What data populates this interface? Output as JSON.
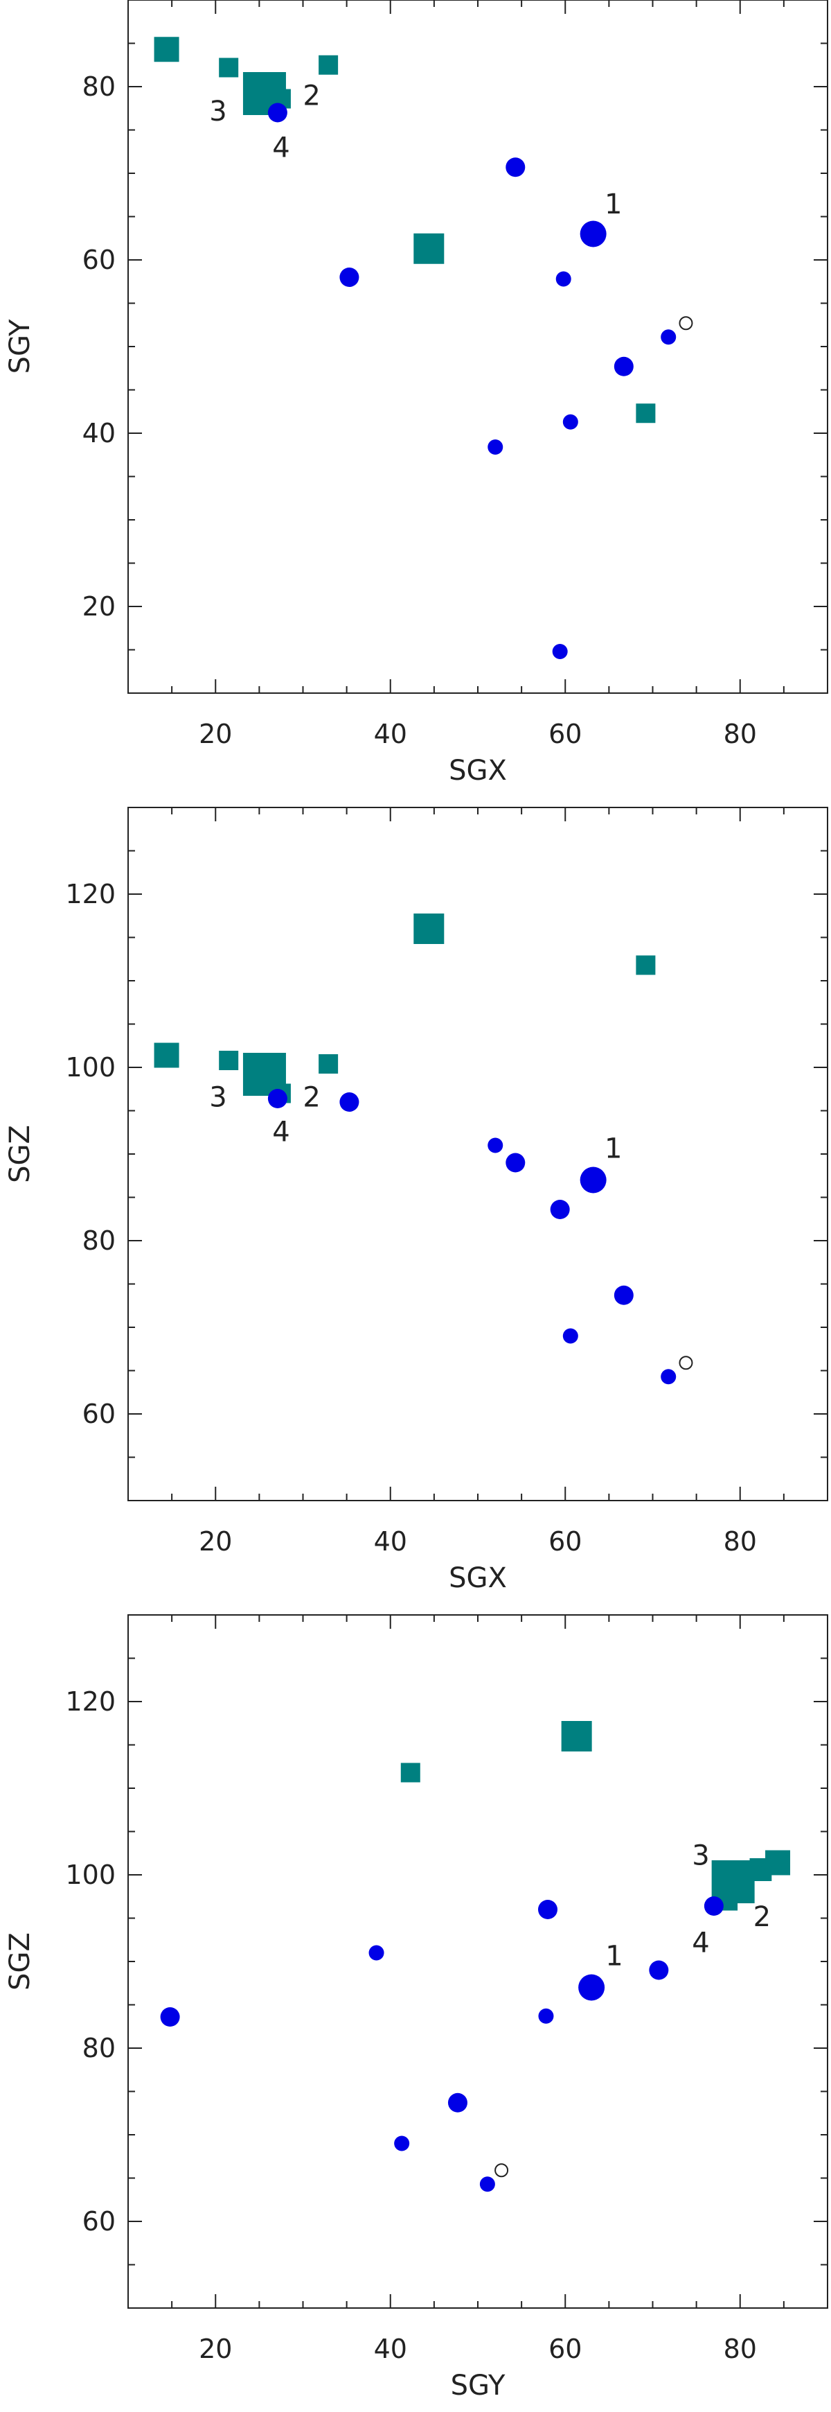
{
  "colors": {
    "circle": "#0000e6",
    "square": "#008080",
    "axis": "#222222",
    "open_marker": "#222222"
  },
  "chart_data": [
    {
      "type": "scatter",
      "xlabel": "SGX",
      "ylabel": "SGY",
      "xlim": [
        10,
        90
      ],
      "ylim": [
        10,
        90
      ],
      "xticks": [
        20,
        40,
        60,
        80
      ],
      "yticks": [
        20,
        40,
        60,
        80
      ],
      "grid": false,
      "circles": [
        {
          "x": 27.1,
          "y": 77,
          "size": "m"
        },
        {
          "x": 54.3,
          "y": 70.7,
          "size": "m"
        },
        {
          "x": 63.2,
          "y": 63,
          "size": "l"
        },
        {
          "x": 35.3,
          "y": 58,
          "size": "m"
        },
        {
          "x": 59.8,
          "y": 57.8,
          "size": "s"
        },
        {
          "x": 71.8,
          "y": 51.1,
          "size": "s"
        },
        {
          "x": 66.7,
          "y": 47.7,
          "size": "m"
        },
        {
          "x": 60.6,
          "y": 41.3,
          "size": "s"
        },
        {
          "x": 52.0,
          "y": 38.4,
          "size": "s"
        },
        {
          "x": 59.4,
          "y": 14.8,
          "size": "s"
        }
      ],
      "squares": [
        {
          "x": 14.4,
          "y": 84.3,
          "size": "m"
        },
        {
          "x": 21.5,
          "y": 82.2,
          "size": "s"
        },
        {
          "x": 32.9,
          "y": 82.5,
          "size": "s"
        },
        {
          "x": 27.5,
          "y": 78.6,
          "size": "s"
        },
        {
          "x": 25.6,
          "y": 79.2,
          "size": "xl"
        },
        {
          "x": 44.4,
          "y": 61.3,
          "size": "l"
        },
        {
          "x": 69.2,
          "y": 42.3,
          "size": "s"
        }
      ],
      "open": [
        {
          "x": 73.8,
          "y": 52.7
        }
      ],
      "labels": [
        {
          "text": "1",
          "x": 65.5,
          "y": 66.5
        },
        {
          "text": "2",
          "x": 31.0,
          "y": 79.0
        },
        {
          "text": "3",
          "x": 20.3,
          "y": 77.2
        },
        {
          "text": "4",
          "x": 27.5,
          "y": 73.0
        }
      ]
    },
    {
      "type": "scatter",
      "xlabel": "SGX",
      "ylabel": "SGZ",
      "xlim": [
        10,
        90
      ],
      "ylim": [
        50,
        130
      ],
      "xticks": [
        20,
        40,
        60,
        80
      ],
      "yticks": [
        60,
        80,
        100,
        120
      ],
      "grid": false,
      "circles": [
        {
          "x": 27.1,
          "y": 96.4,
          "size": "m"
        },
        {
          "x": 35.3,
          "y": 96.0,
          "size": "m"
        },
        {
          "x": 52.0,
          "y": 91.0,
          "size": "s"
        },
        {
          "x": 54.3,
          "y": 89.0,
          "size": "m"
        },
        {
          "x": 63.2,
          "y": 87.0,
          "size": "l"
        },
        {
          "x": 59.4,
          "y": 83.6,
          "size": "m"
        },
        {
          "x": 66.7,
          "y": 73.7,
          "size": "m"
        },
        {
          "x": 60.6,
          "y": 69.0,
          "size": "s"
        },
        {
          "x": 71.8,
          "y": 64.3,
          "size": "s"
        }
      ],
      "squares": [
        {
          "x": 44.4,
          "y": 116.0,
          "size": "l"
        },
        {
          "x": 69.2,
          "y": 111.8,
          "size": "s"
        },
        {
          "x": 14.4,
          "y": 101.4,
          "size": "m"
        },
        {
          "x": 21.5,
          "y": 100.8,
          "size": "s"
        },
        {
          "x": 32.9,
          "y": 100.4,
          "size": "s"
        },
        {
          "x": 25.6,
          "y": 99.2,
          "size": "xl"
        },
        {
          "x": 27.5,
          "y": 97.0,
          "size": "s"
        }
      ],
      "open": [
        {
          "x": 73.8,
          "y": 65.9
        }
      ],
      "labels": [
        {
          "text": "1",
          "x": 65.5,
          "y": 90.7
        },
        {
          "text": "2",
          "x": 31.0,
          "y": 96.6
        },
        {
          "text": "3",
          "x": 20.3,
          "y": 96.6
        },
        {
          "text": "4",
          "x": 27.5,
          "y": 92.6
        }
      ]
    },
    {
      "type": "scatter",
      "xlabel": "SGY",
      "ylabel": "SGZ",
      "xlim": [
        10,
        90
      ],
      "ylim": [
        50,
        130
      ],
      "xticks": [
        20,
        40,
        60,
        80
      ],
      "yticks": [
        60,
        80,
        100,
        120
      ],
      "grid": false,
      "circles": [
        {
          "x": 14.8,
          "y": 83.6,
          "size": "m"
        },
        {
          "x": 38.4,
          "y": 91.0,
          "size": "s"
        },
        {
          "x": 41.3,
          "y": 69.0,
          "size": "s"
        },
        {
          "x": 47.7,
          "y": 73.7,
          "size": "m"
        },
        {
          "x": 51.1,
          "y": 64.3,
          "size": "s"
        },
        {
          "x": 57.8,
          "y": 83.7,
          "size": "s"
        },
        {
          "x": 58.0,
          "y": 96.0,
          "size": "m"
        },
        {
          "x": 63.0,
          "y": 87.0,
          "size": "l"
        },
        {
          "x": 70.7,
          "y": 89.0,
          "size": "m"
        },
        {
          "x": 77.0,
          "y": 96.4,
          "size": "m"
        }
      ],
      "squares": [
        {
          "x": 42.3,
          "y": 111.8,
          "size": "s"
        },
        {
          "x": 61.3,
          "y": 116.0,
          "size": "l"
        },
        {
          "x": 79.2,
          "y": 99.2,
          "size": "xl"
        },
        {
          "x": 82.2,
          "y": 100.8,
          "size": "s"
        },
        {
          "x": 82.5,
          "y": 100.4,
          "size": "s"
        },
        {
          "x": 84.3,
          "y": 101.4,
          "size": "m"
        },
        {
          "x": 78.6,
          "y": 97.0,
          "size": "s"
        }
      ],
      "open": [
        {
          "x": 52.7,
          "y": 65.9
        }
      ],
      "labels": [
        {
          "text": "1",
          "x": 65.6,
          "y": 90.7
        },
        {
          "text": "2",
          "x": 82.5,
          "y": 95.2
        },
        {
          "text": "3",
          "x": 75.5,
          "y": 102.3
        },
        {
          "text": "4",
          "x": 75.5,
          "y": 92.2
        }
      ]
    }
  ]
}
